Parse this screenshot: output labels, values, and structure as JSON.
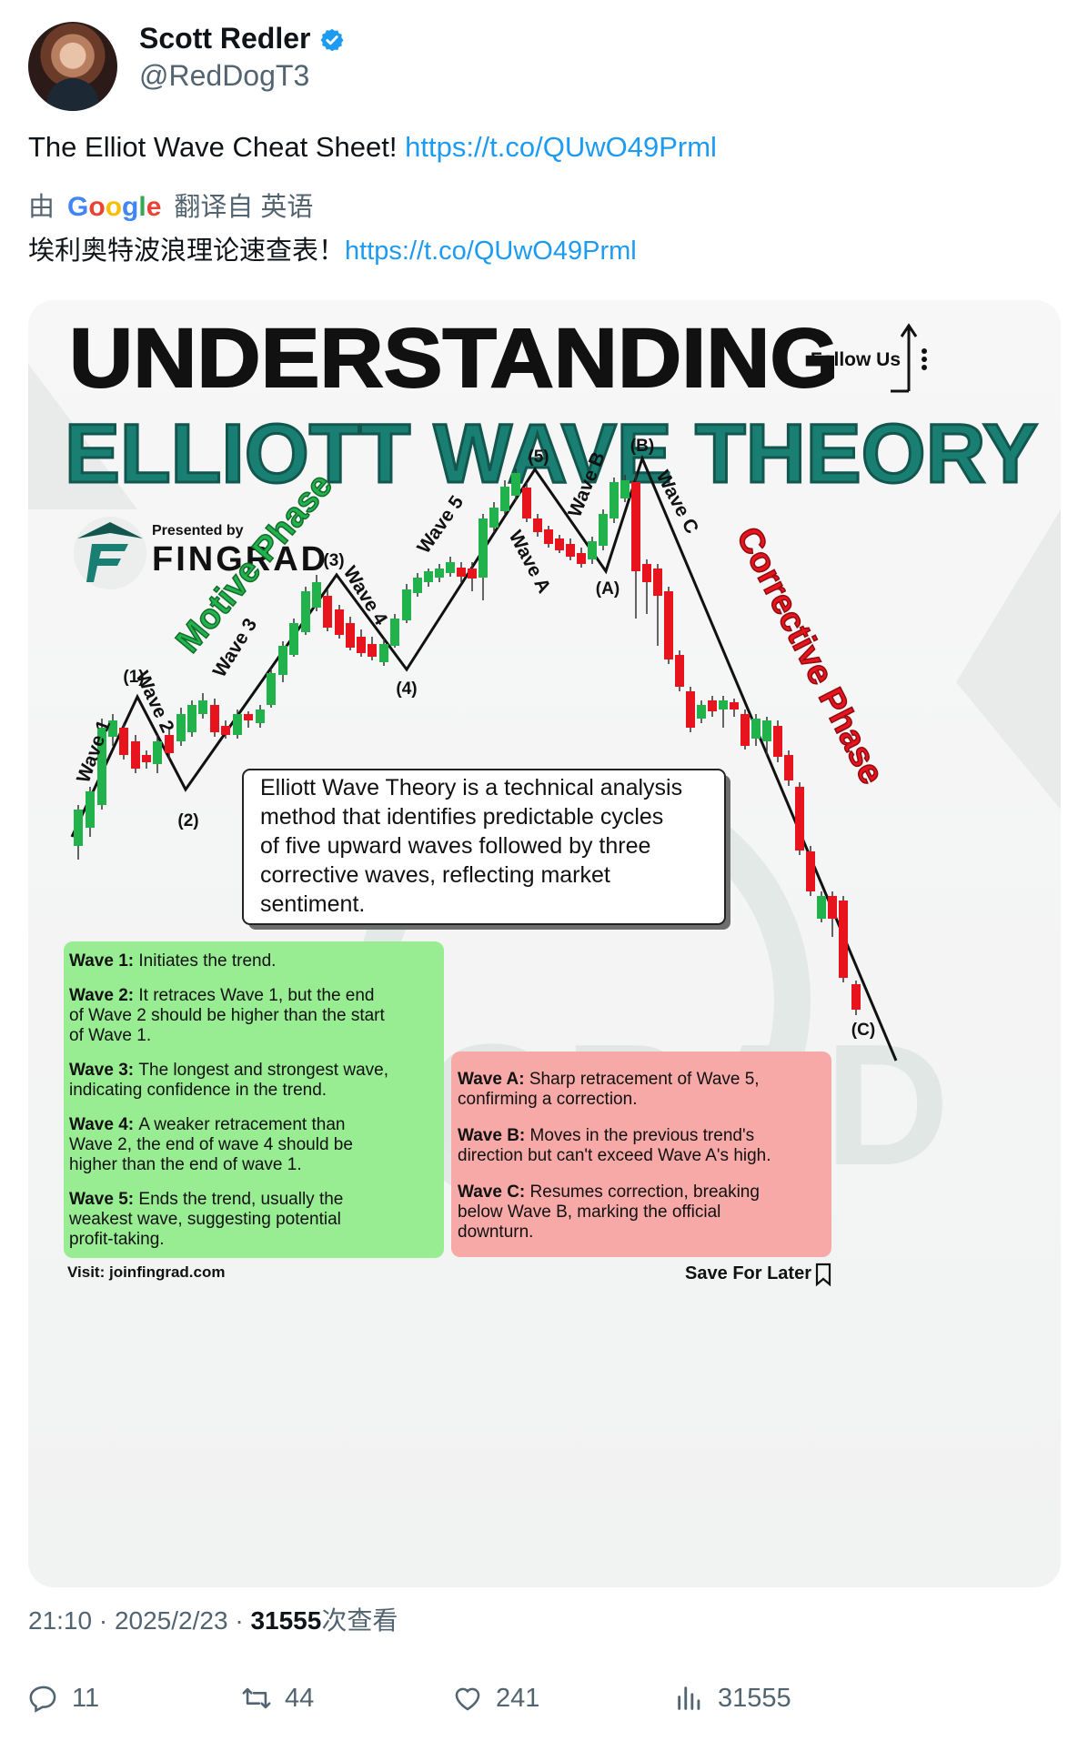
{
  "author": {
    "name": "Scott Redler",
    "handle": "@RedDogT3"
  },
  "tweet": {
    "text": "The Elliot Wave Cheat Sheet! ",
    "link": "https://t.co/QUwO49Prml",
    "translate_by": "由",
    "translate_google": "Google",
    "translate_from": "翻译自 英语",
    "translated_text": "埃利奥特波浪理论速查表！",
    "translated_link": "https://t.co/QUwO49Prml"
  },
  "infographic": {
    "title_line1": "UNDERSTANDING",
    "title_line2": "ELLIOTT WAVE THEORY",
    "follow_us": "Follow Us",
    "presented_by": "Presented by",
    "brand": "FINGRAD",
    "watermark": "FINGRAD",
    "motive_phase": "Motive Phase",
    "corrective_phase": "Corrective Phase",
    "wave_labels": [
      "Wave 1",
      "Wave 2",
      "Wave 3",
      "Wave 4",
      "Wave 5",
      "Wave A",
      "Wave B",
      "Wave C"
    ],
    "point_labels": [
      "(1)",
      "(2)",
      "(3)",
      "(4)",
      "(5)",
      "(A)",
      "(B)",
      "(C)"
    ],
    "definition": [
      "Elliott Wave Theory is a technical analysis",
      "method that identifies predictable cycles",
      "of five upward waves followed by three",
      "corrective waves, reflecting market",
      "sentiment."
    ],
    "motive_items": [
      {
        "head": "Wave 1:",
        "lines": [
          "Initiates the trend."
        ]
      },
      {
        "head": "Wave 2:",
        "lines": [
          "It retraces Wave 1, but the end",
          "of Wave 2 should be higher than the start",
          "of Wave 1."
        ]
      },
      {
        "head": "Wave 3:",
        "lines": [
          "The longest and strongest wave,",
          "indicating confidence in the trend."
        ]
      },
      {
        "head": "Wave 4:",
        "lines": [
          "A weaker retracement than",
          "Wave 2, the end of wave 4 should be",
          "higher than the end of wave 1."
        ]
      },
      {
        "head": "Wave 5:",
        "lines": [
          "Ends the trend, usually the",
          "weakest wave, suggesting potential",
          "profit-taking."
        ]
      }
    ],
    "corrective_items": [
      {
        "head": "Wave A:",
        "lines": [
          "Sharp retracement of Wave 5,",
          "confirming a correction."
        ]
      },
      {
        "head": "Wave B:",
        "lines": [
          "Moves in the previous trend's",
          "direction but can't exceed Wave A's high."
        ]
      },
      {
        "head": "Wave C:",
        "lines": [
          "Resumes correction, breaking",
          "below Wave B, marking the official",
          "downturn."
        ]
      }
    ],
    "visit": "Visit: joinfingrad.com",
    "save_for_later": "Save For Later",
    "colors": {
      "teal": "#1a7f73",
      "green_candle": "#22b24c",
      "red_candle": "#e8141d",
      "green_box": "#98ec92",
      "red_box": "#f6a9a6"
    }
  },
  "meta": {
    "time": "21:10",
    "date": "2025/2/23",
    "views_count": "31555",
    "views_label": "次查看"
  },
  "actions": {
    "replies": "11",
    "reposts": "44",
    "likes": "241",
    "views": "31555"
  }
}
